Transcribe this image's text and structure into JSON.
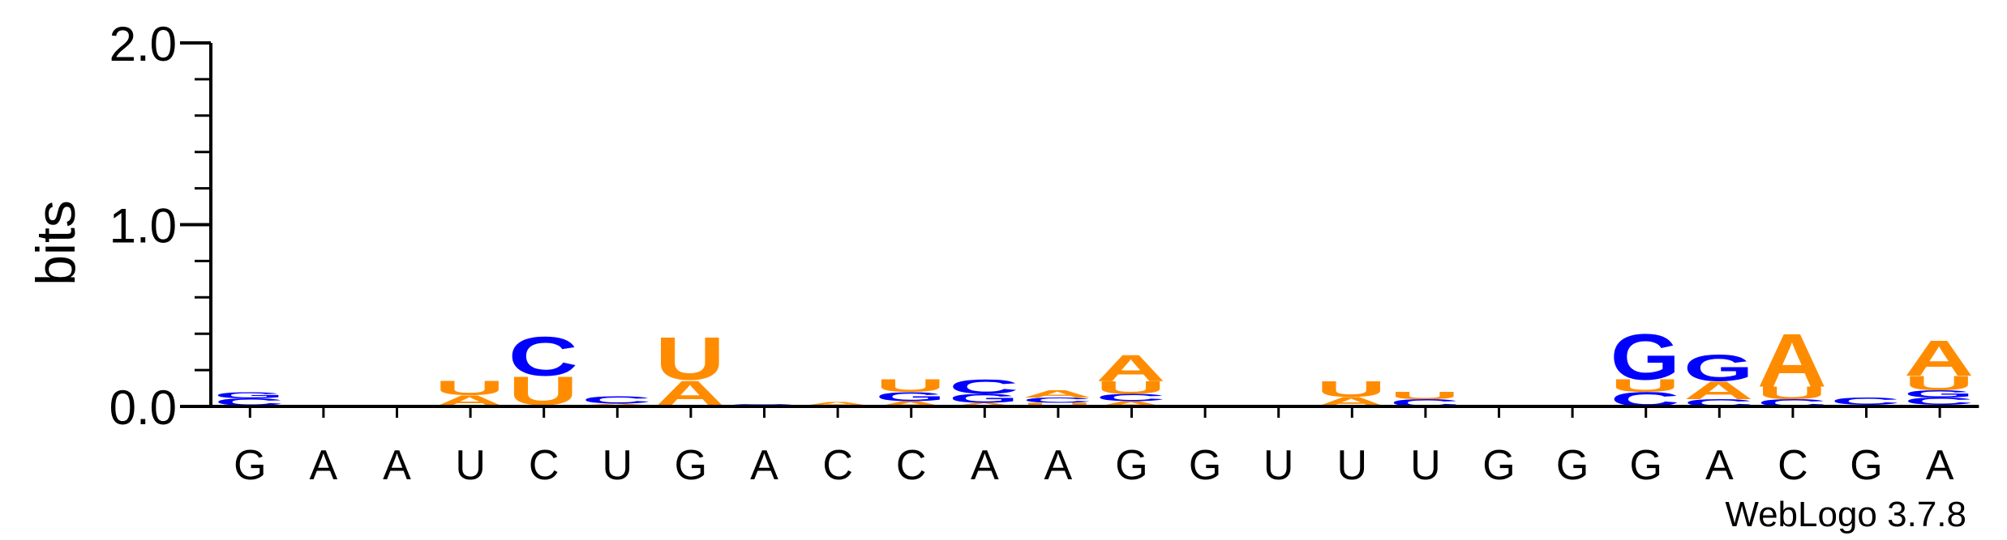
{
  "chart_data": {
    "type": "sequence-logo",
    "ylabel": "bits",
    "ylim": [
      0,
      2.0
    ],
    "y_ticks": [
      {
        "value": 0.0,
        "label": "0.0"
      },
      {
        "value": 1.0,
        "label": "1.0"
      },
      {
        "value": 2.0,
        "label": "2.0"
      }
    ],
    "x_ticks": [
      "G",
      "A",
      "A",
      "U",
      "C",
      "U",
      "G",
      "A",
      "C",
      "C",
      "A",
      "A",
      "G",
      "G",
      "U",
      "U",
      "U",
      "G",
      "G",
      "G",
      "A",
      "C",
      "G",
      "A"
    ],
    "colors": {
      "A": "#ff8c00",
      "U": "#ff8c00",
      "C": "#0000ff",
      "G": "#0000ff"
    },
    "positions": [
      [
        {
          "letter": "A",
          "bits": 0.005
        },
        {
          "letter": "C",
          "bits": 0.04
        },
        {
          "letter": "G",
          "bits": 0.035
        }
      ],
      [
        {
          "letter": "U",
          "bits": 0.003
        },
        {
          "letter": "A",
          "bits": 0.004
        }
      ],
      [],
      [
        {
          "letter": "C",
          "bits": 0.003
        },
        {
          "letter": "A",
          "bits": 0.06
        },
        {
          "letter": "U",
          "bits": 0.08
        }
      ],
      [
        {
          "letter": "G",
          "bits": 0.01
        },
        {
          "letter": "U",
          "bits": 0.16
        },
        {
          "letter": "C",
          "bits": 0.22
        }
      ],
      [
        {
          "letter": "G",
          "bits": 0.006
        },
        {
          "letter": "A",
          "bits": 0.01
        },
        {
          "letter": "C",
          "bits": 0.04
        }
      ],
      [
        {
          "letter": "C",
          "bits": 0.006
        },
        {
          "letter": "A",
          "bits": 0.14
        },
        {
          "letter": "U",
          "bits": 0.24
        }
      ],
      [
        {
          "letter": "G",
          "bits": 0.015
        }
      ],
      [
        {
          "letter": "C",
          "bits": 0.005
        },
        {
          "letter": "A",
          "bits": 0.02
        }
      ],
      [
        {
          "letter": "A",
          "bits": 0.03
        },
        {
          "letter": "G",
          "bits": 0.05
        },
        {
          "letter": "U",
          "bits": 0.07
        }
      ],
      [
        {
          "letter": "A",
          "bits": 0.02
        },
        {
          "letter": "G",
          "bits": 0.05
        },
        {
          "letter": "C",
          "bits": 0.08
        }
      ],
      [
        {
          "letter": "U",
          "bits": 0.02
        },
        {
          "letter": "C",
          "bits": 0.03
        },
        {
          "letter": "A",
          "bits": 0.04
        }
      ],
      [
        {
          "letter": "A",
          "bits": 0.03
        },
        {
          "letter": "C",
          "bits": 0.04
        },
        {
          "letter": "U",
          "bits": 0.07
        },
        {
          "letter": "A",
          "bits": 0.15
        }
      ],
      [],
      [],
      [
        {
          "letter": "C",
          "bits": 0.003
        },
        {
          "letter": "A",
          "bits": 0.05
        },
        {
          "letter": "U",
          "bits": 0.09
        }
      ],
      [
        {
          "letter": "C",
          "bits": 0.04
        },
        {
          "letter": "U",
          "bits": 0.04
        }
      ],
      [
        {
          "letter": "C",
          "bits": 0.006
        }
      ],
      [],
      [
        {
          "letter": "C",
          "bits": 0.08
        },
        {
          "letter": "U",
          "bits": 0.07
        },
        {
          "letter": "G",
          "bits": 0.26
        }
      ],
      [
        {
          "letter": "C",
          "bits": 0.04
        },
        {
          "letter": "A",
          "bits": 0.1
        },
        {
          "letter": "G",
          "bits": 0.15
        }
      ],
      [
        {
          "letter": "C",
          "bits": 0.04
        },
        {
          "letter": "U",
          "bits": 0.07
        },
        {
          "letter": "A",
          "bits": 0.3
        }
      ],
      [
        {
          "letter": "A",
          "bits": 0.01
        },
        {
          "letter": "C",
          "bits": 0.04
        }
      ],
      [
        {
          "letter": "A",
          "bits": 0.01
        },
        {
          "letter": "C",
          "bits": 0.04
        },
        {
          "letter": "G",
          "bits": 0.04
        },
        {
          "letter": "U",
          "bits": 0.08
        },
        {
          "letter": "A",
          "bits": 0.2
        }
      ]
    ]
  },
  "footer": {
    "credit": "WebLogo 3.7.8"
  }
}
